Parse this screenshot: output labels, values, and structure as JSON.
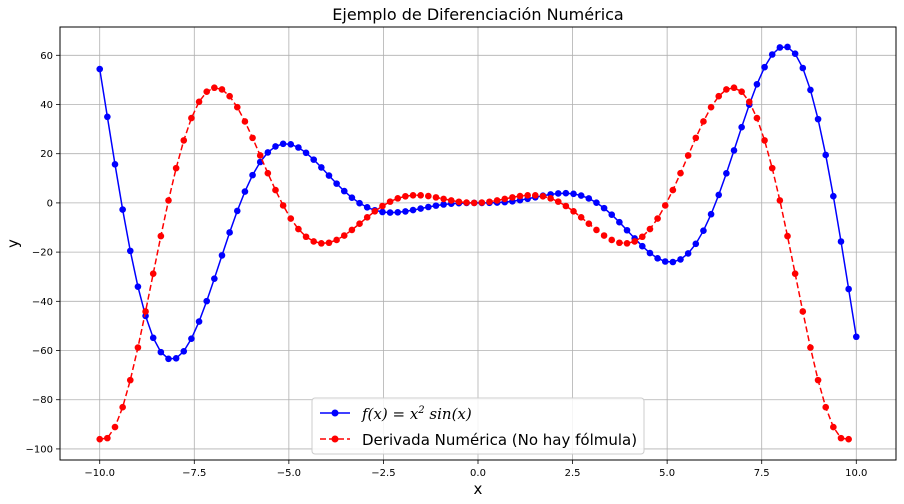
{
  "chart_data": {
    "type": "line",
    "title": "Ejemplo de Diferenciación Numérica",
    "xlabel": "x",
    "ylabel": "y",
    "xlim": [
      -11.05,
      11.05
    ],
    "ylim": [
      -104.5,
      71.5
    ],
    "xticks": [
      -10,
      -7.5,
      -5,
      -2.5,
      0,
      2.5,
      5,
      7.5,
      10
    ],
    "xtick_labels": [
      "−10.0",
      "−7.5",
      "−5.0",
      "−2.5",
      "0.0",
      "2.5",
      "5.0",
      "7.5",
      "10.0"
    ],
    "yticks": [
      -100,
      -80,
      -60,
      -40,
      -20,
      0,
      20,
      40,
      60
    ],
    "ytick_labels": [
      "−100",
      "−80",
      "−60",
      "−40",
      "−20",
      "0",
      "20",
      "40",
      "60"
    ],
    "grid": true,
    "legend_position": "bottom-center",
    "series": [
      {
        "name_main": "f(x) = x",
        "name_sup": "2",
        "name_rest": " sin(x)",
        "name": "f(x) = x² sin(x)",
        "color": "#0000ff",
        "linestyle": "solid",
        "marker": "circle",
        "x_range": [
          -10,
          10,
          100
        ],
        "function": "x^2 sin(x)"
      },
      {
        "name": "Derivada Numérica (No hay fólmula)",
        "color": "#ff0000",
        "linestyle": "dashed",
        "marker": "circle",
        "x_range": [
          -10,
          9.798,
          99
        ],
        "function": "forward difference of x^2 sin(x), h = 20/99"
      }
    ]
  },
  "colors": {
    "blue": "#0000ff",
    "red": "#ff0000",
    "grid": "#b0b0b0"
  }
}
